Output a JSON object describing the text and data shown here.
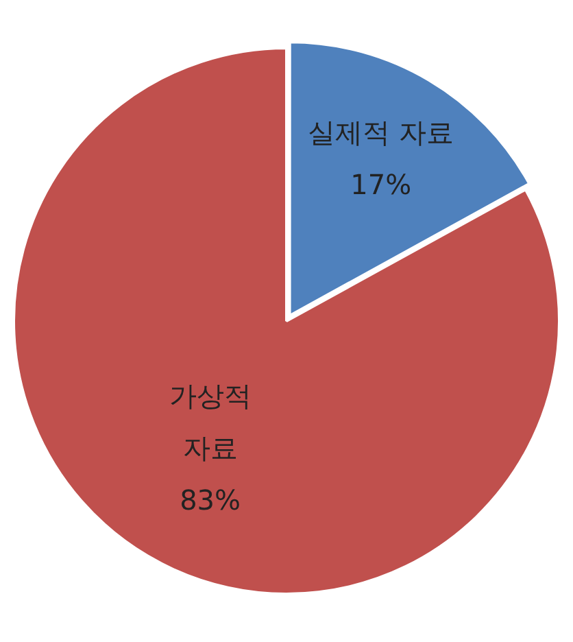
{
  "chart_data": {
    "type": "pie",
    "categories": [
      "실제적 자료",
      "가상적 자료"
    ],
    "values": [
      17,
      83
    ],
    "colors": [
      "#4f81bd",
      "#c0504d"
    ],
    "value_labels": [
      "17%",
      "83%"
    ]
  }
}
